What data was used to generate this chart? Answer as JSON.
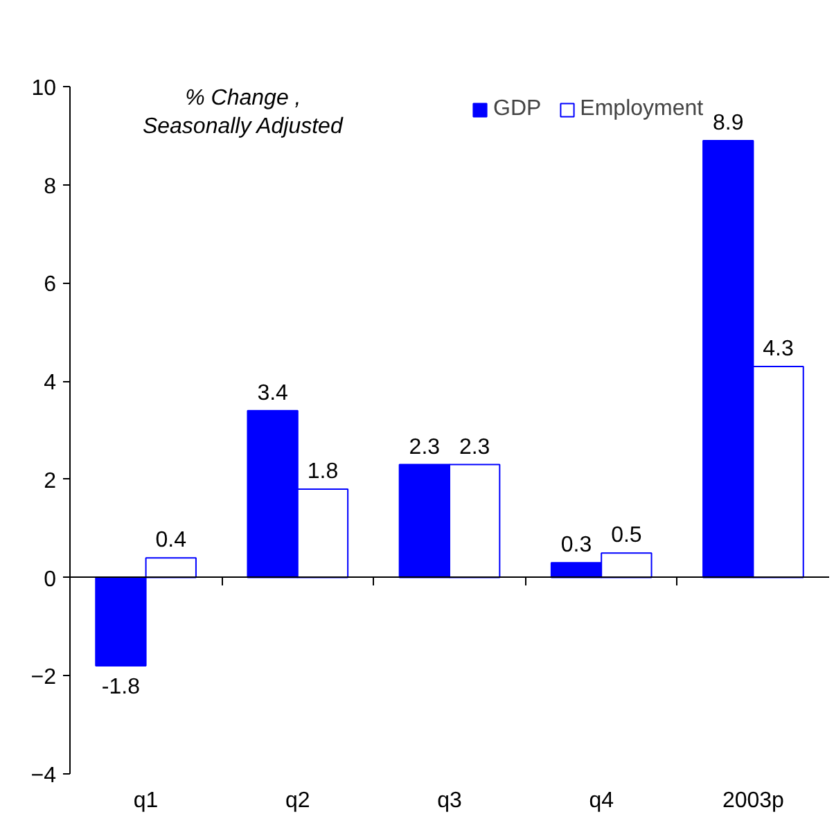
{
  "chart_data": {
    "type": "bar",
    "ylabel": "% Change ,\nSeasonally Adjusted",
    "categories": [
      "q1",
      "q2",
      "q3",
      "q4",
      "2003p"
    ],
    "series": [
      {
        "name": "GDP",
        "color": "#0000ff",
        "values": [
          -1.8,
          3.4,
          2.3,
          0.3,
          8.9
        ]
      },
      {
        "name": "Employment",
        "color": "#ffffff",
        "values": [
          0.4,
          1.8,
          2.3,
          0.5,
          4.3
        ]
      }
    ],
    "ylim": [
      -4,
      10
    ],
    "yticks": [
      -4,
      -2,
      0,
      2,
      4,
      6,
      8,
      10
    ],
    "data_labels": true,
    "legend": "top right"
  }
}
